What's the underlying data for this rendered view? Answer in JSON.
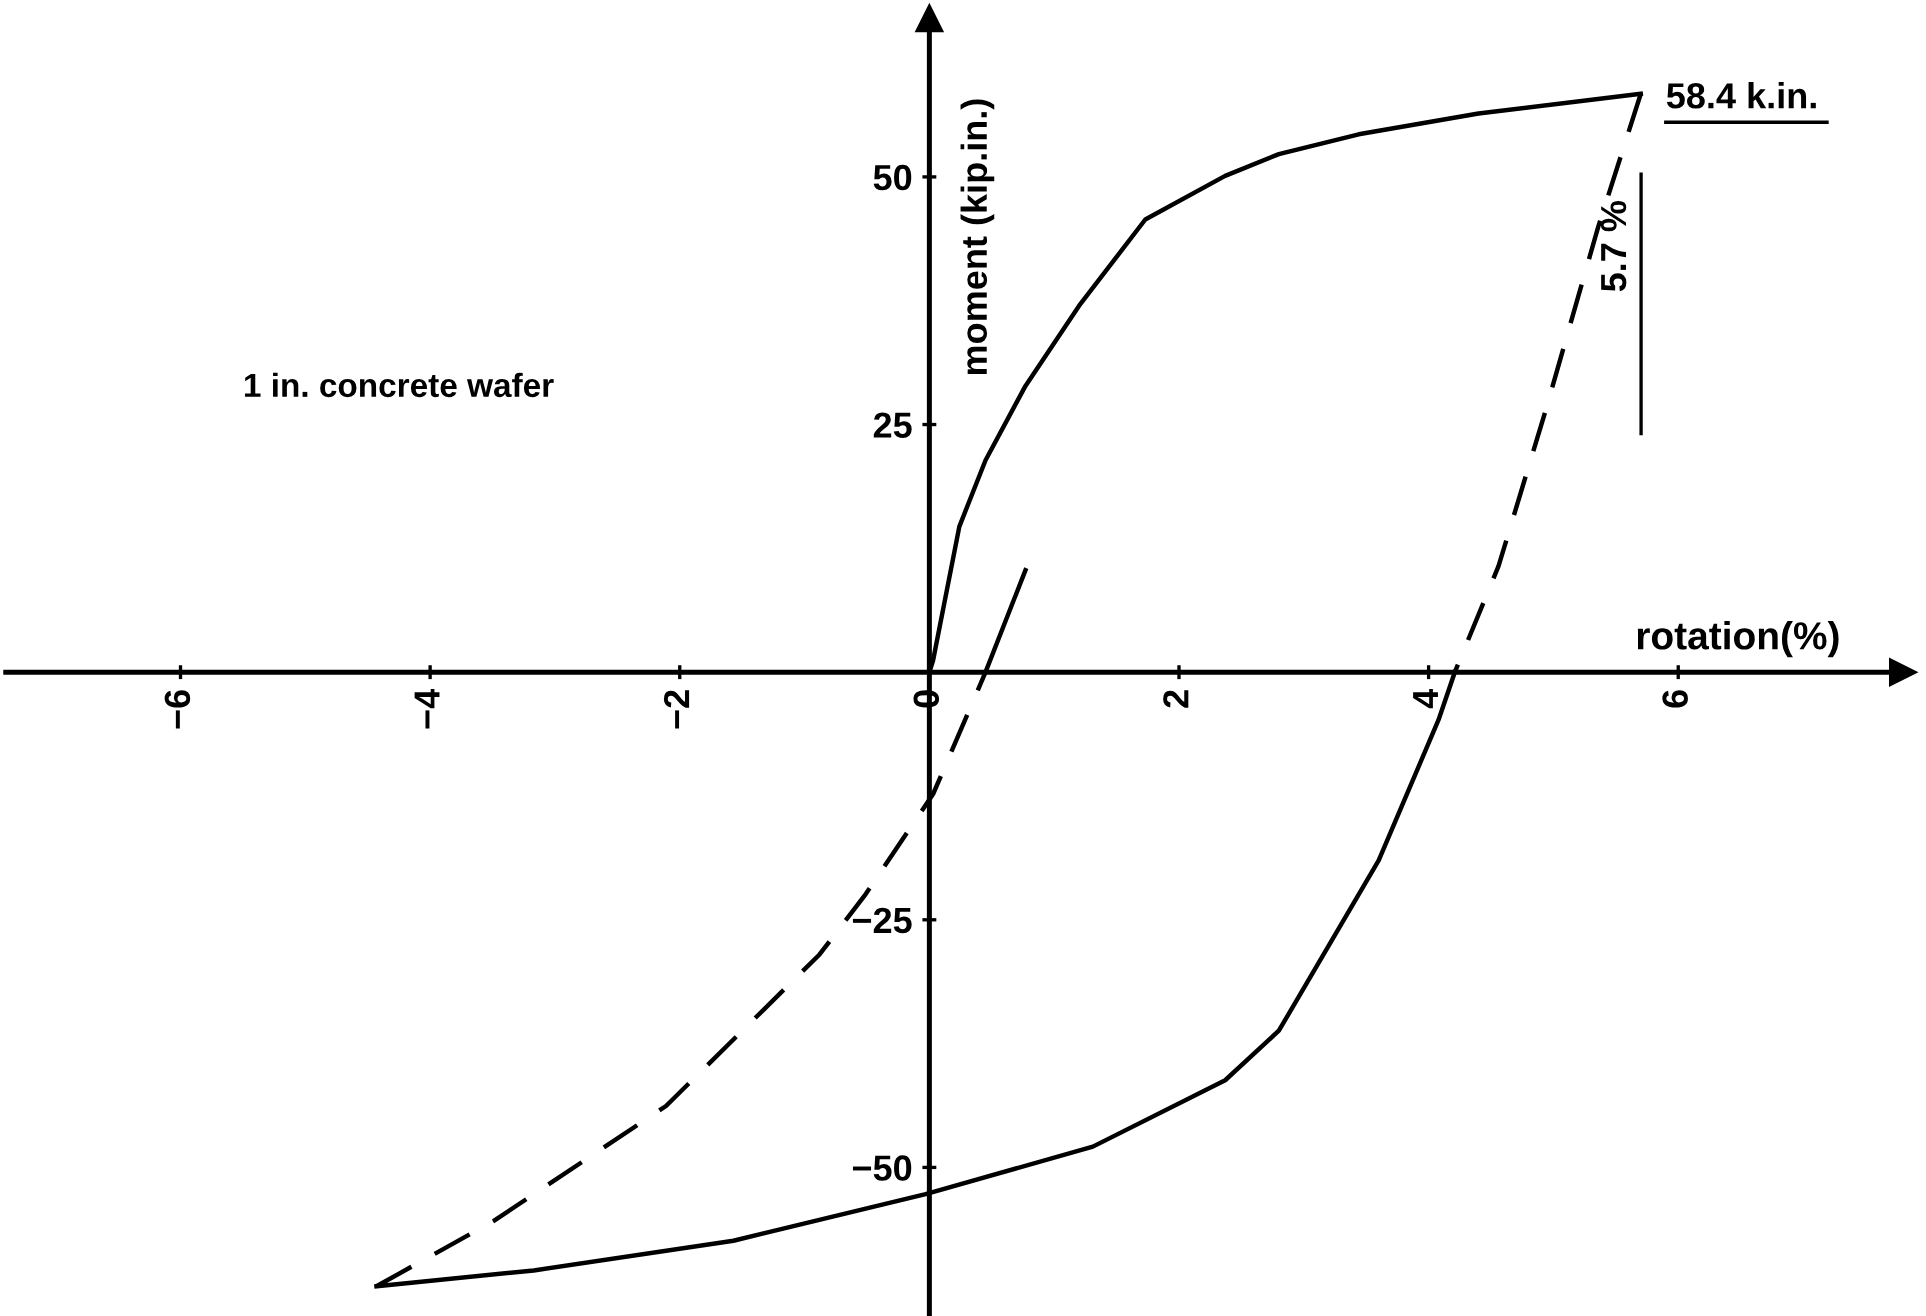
{
  "chart_data": {
    "type": "line",
    "xlabel": "rotation(%)",
    "ylabel": "moment (kip.in.)",
    "xlim": [
      -7.4,
      7.8
    ],
    "ylim": [
      -65,
      66
    ],
    "xticks": [
      -6,
      -4,
      -2,
      0,
      2,
      4,
      6
    ],
    "yticks": [
      -50,
      -25,
      25,
      50
    ],
    "grid": false,
    "marker": "none",
    "series": [
      {
        "color": "#000000",
        "line_style": "solid",
        "x": [
          0,
          0.03,
          0.24,
          0.45,
          0.77,
          1.2,
          1.73,
          2.37,
          2.8,
          3.44,
          4.4,
          5.7
        ],
        "values": [
          0,
          1.2,
          14.7,
          21.4,
          28.9,
          37.0,
          45.7,
          50.1,
          52.3,
          54.3,
          56.4,
          58.4
        ]
      },
      {
        "color": "#000000",
        "line_style": "dashed",
        "x": [
          5.7,
          5.36,
          4.93,
          4.56,
          4.21
        ],
        "values": [
          58.4,
          45.0,
          26.1,
          10.7,
          0
        ]
      },
      {
        "color": "#000000",
        "line_style": "solid",
        "x": [
          4.21,
          4.08,
          3.6,
          2.8,
          2.37,
          1.31,
          -0.03,
          -1.57,
          -3.17,
          -4.43
        ],
        "values": [
          0,
          -4.8,
          -19.0,
          -36.2,
          -41.2,
          -47.9,
          -52.7,
          -57.4,
          -60.4,
          -62.0
        ]
      },
      {
        "color": "#000000",
        "line_style": "dashed",
        "x": [
          -4.43,
          -3.49,
          -2.11,
          -0.88,
          -0.51,
          0.03,
          0.45
        ],
        "values": [
          -62.0,
          -55.4,
          -43.8,
          -28.5,
          -22.4,
          -12.3,
          0
        ]
      },
      {
        "color": "#000000",
        "line_style": "solid",
        "x": [
          0.45,
          0.77
        ],
        "values": [
          0,
          10.3
        ]
      }
    ],
    "annotations": [
      "1 in. concrete wafer",
      "58.4 k.in.",
      "5.7 %"
    ]
  }
}
